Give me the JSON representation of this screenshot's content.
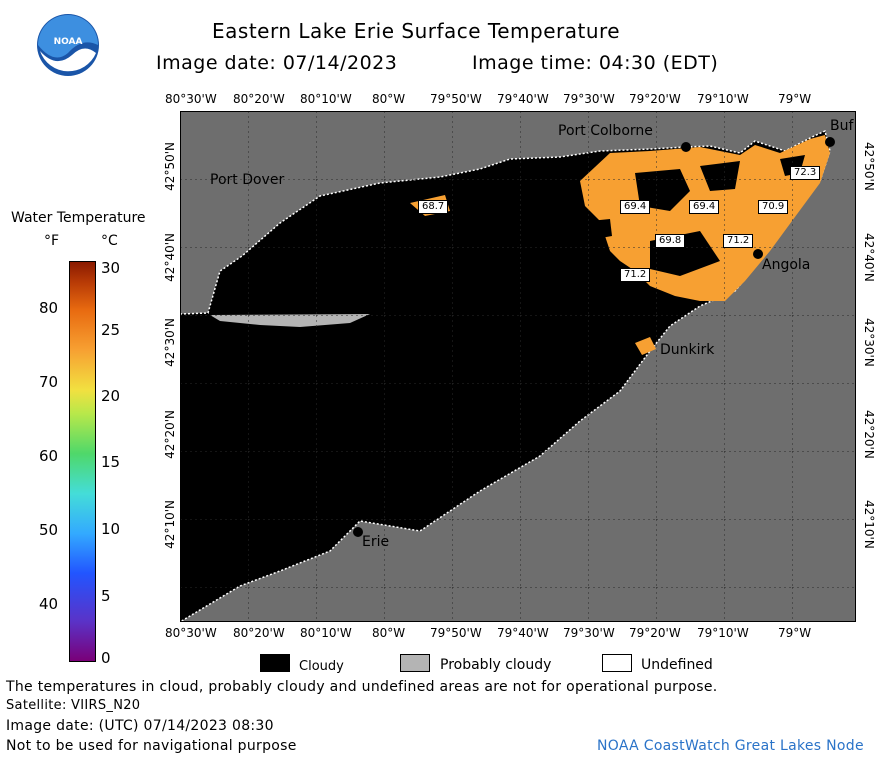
{
  "header": {
    "title": "Eastern Lake Erie Surface Temperature",
    "image_date": "Image date: 07/14/2023",
    "image_time": "Image time: 04:30 (EDT)"
  },
  "logo": {
    "text": "NOAA"
  },
  "legend": {
    "title": "Water Temperature",
    "unit_f": "°F",
    "unit_c": "°C",
    "f_ticks": [
      "80",
      "70",
      "60",
      "50",
      "40"
    ],
    "c_ticks": [
      "30",
      "25",
      "20",
      "15",
      "10",
      "5",
      "0"
    ]
  },
  "axes": {
    "lon_ticks": [
      "80°30'W",
      "80°20'W",
      "80°10'W",
      "80°W",
      "79°50'W",
      "79°40'W",
      "79°30'W",
      "79°20'W",
      "79°10'W",
      "79°W"
    ],
    "lat_ticks": [
      "42°50'N",
      "42°40'N",
      "42°30'N",
      "42°20'N",
      "42°10'N"
    ]
  },
  "places": {
    "port_colborne": "Port Colborne",
    "port_dover": "Port Dover",
    "buffalo": "Buf",
    "angola": "Angola",
    "dunkirk": "Dunkirk",
    "erie": "Erie"
  },
  "temperature_labels": [
    "68.7",
    "69.4",
    "69.4",
    "72.3",
    "70.9",
    "69.8",
    "71.2",
    "71.2"
  ],
  "key": {
    "cloudy": "Cloudy",
    "probably_cloudy": "Probably cloudy",
    "undefined": "Undefined"
  },
  "footer": {
    "note": "The temperatures in cloud, probably cloudy and undefined areas are not for operational purpose.",
    "satellite": "Satellite: VIIRS_N20",
    "utc_date": "Image date: (UTC) 07/14/2023  08:30",
    "nav": "Not to be used for navigational purpose",
    "credit": "NOAA CoastWatch Great Lakes Node"
  },
  "colors": {
    "land": "#6e6e6e",
    "cloud": "#000000",
    "warm_water": "#f7a032",
    "probably_cloudy": "#b4b4b4"
  }
}
